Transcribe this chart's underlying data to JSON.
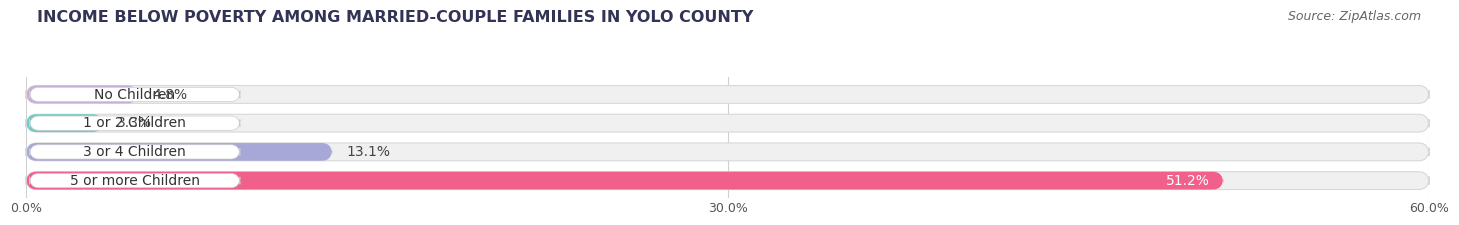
{
  "title": "INCOME BELOW POVERTY AMONG MARRIED-COUPLE FAMILIES IN YOLO COUNTY",
  "source": "Source: ZipAtlas.com",
  "categories": [
    "No Children",
    "1 or 2 Children",
    "3 or 4 Children",
    "5 or more Children"
  ],
  "values": [
    4.8,
    3.3,
    13.1,
    51.2
  ],
  "bar_colors": [
    "#c9aed6",
    "#6dcbc8",
    "#a8a8d8",
    "#f0608a"
  ],
  "value_label_colors": [
    "#555555",
    "#555555",
    "#555555",
    "#ffffff"
  ],
  "xlim": [
    0,
    60
  ],
  "xticks": [
    0.0,
    30.0,
    60.0
  ],
  "xtick_labels": [
    "0.0%",
    "30.0%",
    "60.0%"
  ],
  "title_fontsize": 11.5,
  "source_fontsize": 9,
  "cat_label_fontsize": 10,
  "val_label_fontsize": 10,
  "bar_height": 0.62,
  "background_color": "#ffffff",
  "bar_bg_color": "#f0f0f0",
  "grid_color": "#d0d0d0"
}
